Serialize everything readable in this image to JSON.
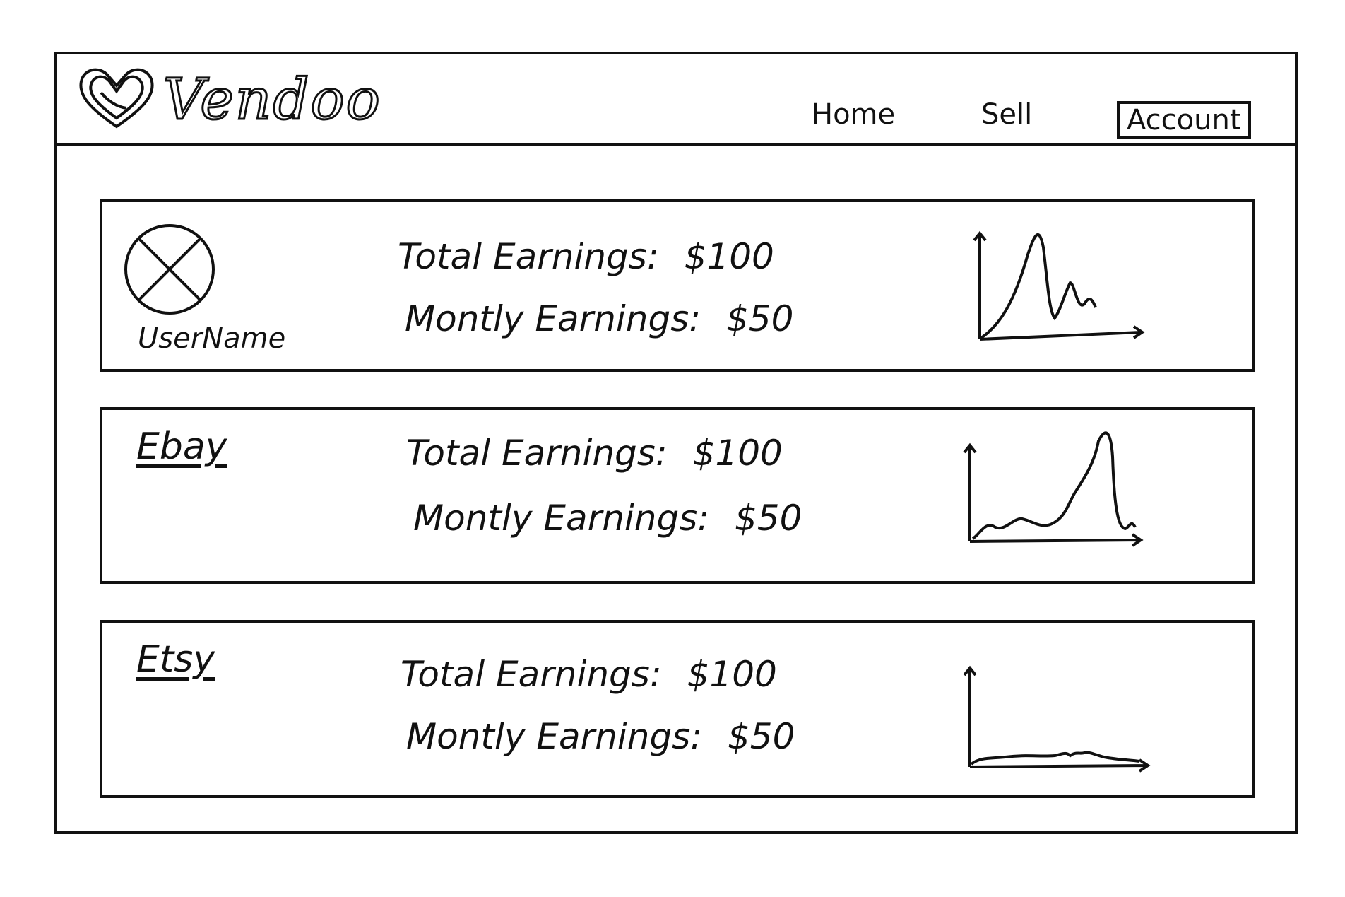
{
  "app": {
    "brand": "Vendoo"
  },
  "nav": {
    "home": "Home",
    "sell": "Sell",
    "account": "Account"
  },
  "profile": {
    "username": "UserName",
    "total_label": "Total Earnings:",
    "total_value": "$100",
    "monthly_label": "Montly Earnings:",
    "monthly_value": "$50"
  },
  "platforms": [
    {
      "name": "Ebay",
      "total_label": "Total Earnings:",
      "total_value": "$100",
      "monthly_label": "Montly Earnings:",
      "monthly_value": "$50"
    },
    {
      "name": "Etsy",
      "total_label": "Total Earnings:",
      "total_value": "$100",
      "monthly_label": "Montly Earnings:",
      "monthly_value": "$50"
    }
  ],
  "icons": {
    "logo": "heart-logo-icon",
    "avatar": "avatar-placeholder-icon",
    "chart": "sparkline-chart-icon"
  },
  "colors": {
    "ink": "#111111",
    "background": "#ffffff"
  }
}
